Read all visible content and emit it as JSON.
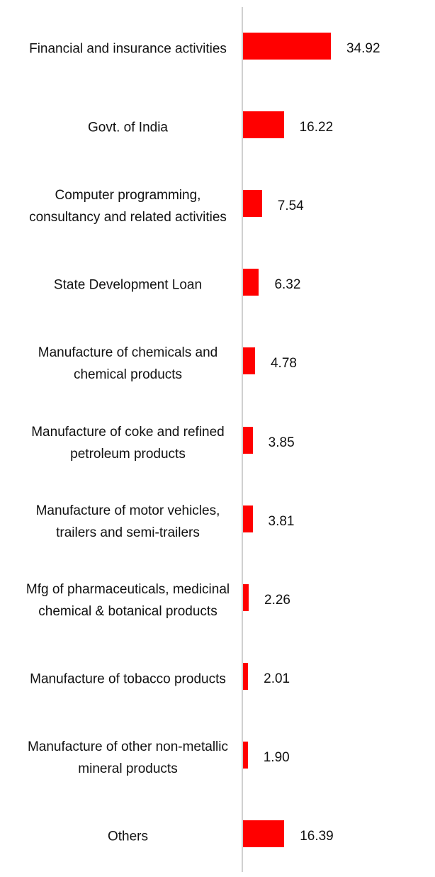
{
  "chart_data": {
    "type": "bar",
    "orientation": "horizontal",
    "color": "#ff0000",
    "categories": [
      "Financial and insurance activities",
      "Govt. of India",
      "Computer programming, consultancy and related activities",
      "State Development Loan",
      "Manufacture of chemicals and chemical products",
      "Manufacture of coke and refined petroleum products",
      "Manufacture of motor vehicles, trailers and semi-trailers",
      "Mfg of pharmaceuticals, medicinal chemical & botanical products",
      "Manufacture of tobacco products",
      "Manufacture of other non-metallic mineral products",
      "Others"
    ],
    "values": [
      34.92,
      16.22,
      7.54,
      6.32,
      4.78,
      3.85,
      3.81,
      2.26,
      2.01,
      1.9,
      16.39
    ],
    "value_labels": [
      "34.92",
      "16.22",
      "7.54",
      "6.32",
      "4.78",
      "3.85",
      "3.81",
      "2.26",
      "2.01",
      "1.90",
      "16.39"
    ]
  }
}
